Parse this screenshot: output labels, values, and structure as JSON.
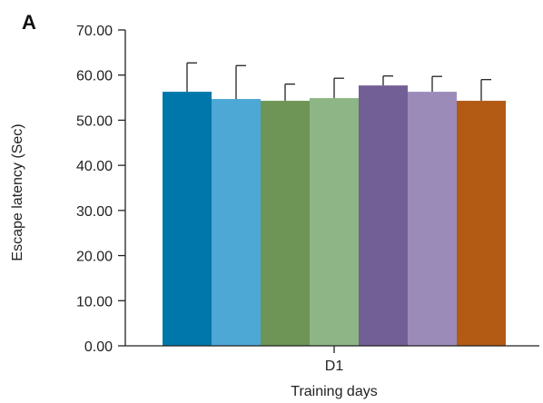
{
  "panel_label": "A",
  "chart_data": {
    "type": "bar",
    "title": "",
    "xlabel": "Training days",
    "ylabel": "Escape latency (Sec)",
    "categories": [
      "D1"
    ],
    "ylim": [
      0,
      70
    ],
    "yticks": [
      0,
      10,
      20,
      30,
      40,
      50,
      60,
      70
    ],
    "ytick_labels": [
      "0.00",
      "10.00",
      "20.00",
      "30.00",
      "40.00",
      "50.00",
      "60.00",
      "70.00"
    ],
    "grid": false,
    "legend": "none",
    "series": [
      {
        "values": [
          56.3
        ],
        "error": [
          6.4
        ],
        "color": "#0077aa"
      },
      {
        "values": [
          54.7
        ],
        "error": [
          7.4
        ],
        "color": "#4ea8d6"
      },
      {
        "values": [
          54.3
        ],
        "error": [
          3.7
        ],
        "color": "#6e9556"
      },
      {
        "values": [
          54.9
        ],
        "error": [
          4.4
        ],
        "color": "#8db585"
      },
      {
        "values": [
          57.7
        ],
        "error": [
          2.1
        ],
        "color": "#725f96"
      },
      {
        "values": [
          56.3
        ],
        "error": [
          3.4
        ],
        "color": "#9a8bb9"
      },
      {
        "values": [
          54.3
        ],
        "error": [
          4.7
        ],
        "color": "#b35a14"
      }
    ]
  }
}
